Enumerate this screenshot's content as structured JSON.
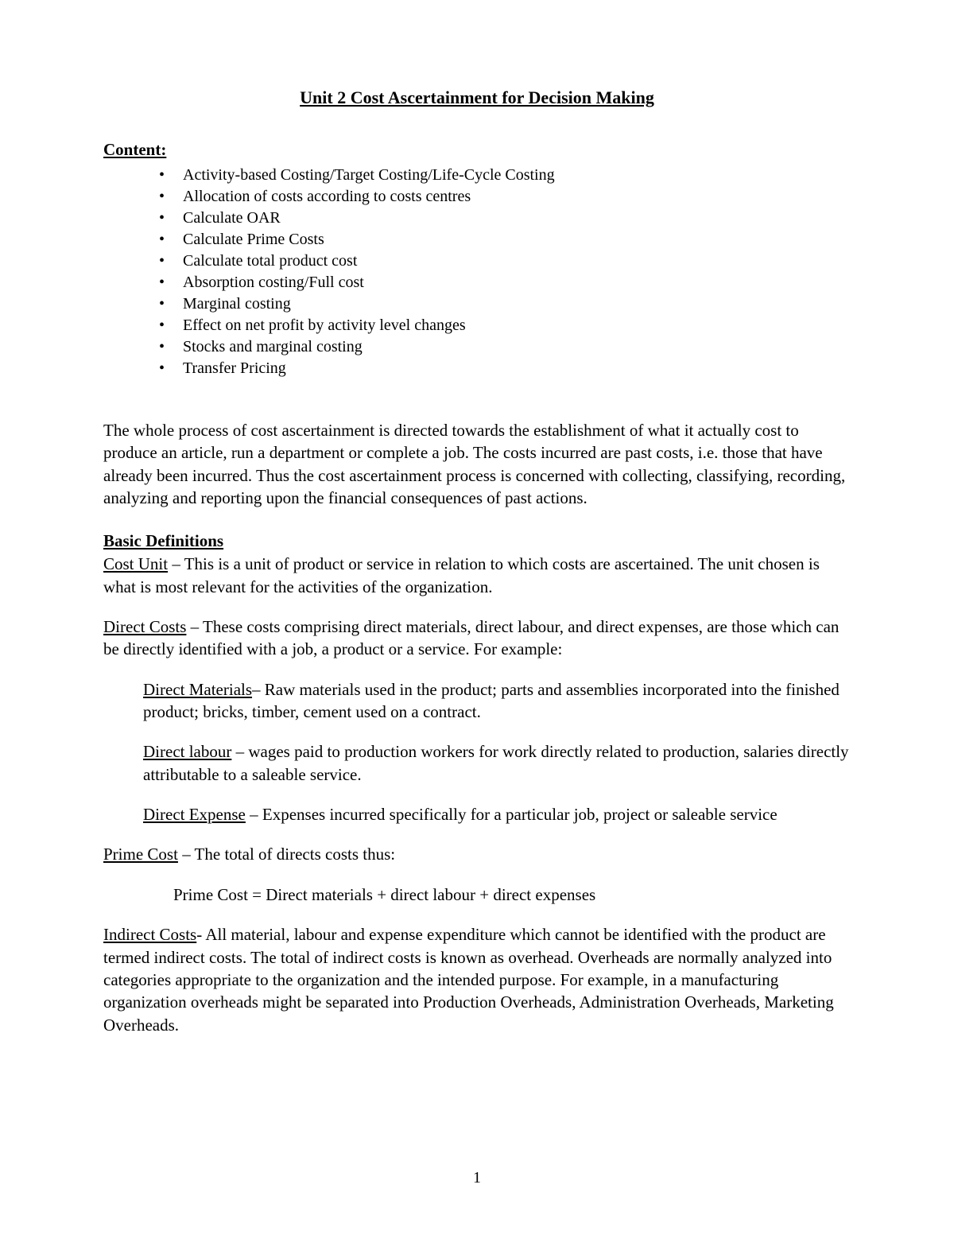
{
  "title": "Unit 2 Cost Ascertainment for Decision Making",
  "content_heading": "Content:",
  "bullets": {
    "b0": "Activity-based Costing/Target Costing/Life-Cycle Costing",
    "b1": "Allocation of costs according to costs centres",
    "b2": "Calculate OAR",
    "b3": "Calculate Prime Costs",
    "b4": "Calculate total product cost",
    "b5": "Absorption costing/Full cost",
    "b6": "Marginal costing",
    "b7": "Effect on net profit by activity level changes",
    "b8": "Stocks and marginal costing",
    "b9": "Transfer Pricing"
  },
  "intro_para": "The whole process of cost ascertainment is directed towards the establishment of what it actually cost to produce an article, run a department or complete a job. The costs incurred are past costs, i.e. those that have already been incurred. Thus the cost ascertainment process is concerned with collecting, classifying, recording, analyzing and reporting upon the financial consequences of past actions.",
  "basic_def_heading": "Basic Definitions",
  "cost_unit": {
    "term": "Cost Unit",
    "text": " – This is a unit of product or service in relation to which costs are ascertained. The unit chosen is what is most relevant for the activities of the organization."
  },
  "direct_costs": {
    "term": "Direct Costs",
    "text": " – These costs comprising direct materials, direct labour, and direct expenses, are those which can be directly identified with a job, a product or a service. For example:"
  },
  "direct_materials": {
    "term": "Direct Materials",
    "text": "– Raw materials used in the product; parts and assemblies incorporated into the finished product; bricks, timber, cement used on a contract."
  },
  "direct_labour": {
    "term": "Direct labour",
    "text": " – wages paid to production workers for work directly related to production, salaries directly attributable to a saleable service."
  },
  "direct_expense": {
    "term": "Direct Expense",
    "text": " – Expenses incurred specifically for a particular job, project or saleable service"
  },
  "prime_cost": {
    "term": "Prime Cost",
    "text": " – The total of directs costs thus:"
  },
  "prime_cost_formula": "Prime Cost = Direct materials + direct labour + direct expenses",
  "indirect_costs": {
    "term": "Indirect Costs",
    "text": "- All material, labour and expense expenditure which cannot be identified with the product are termed indirect costs. The total of indirect costs is known as overhead. Overheads are normally analyzed into categories appropriate to the organization and the intended purpose. For example, in a manufacturing organization overheads might be separated into Production Overheads, Administration Overheads, Marketing Overheads."
  },
  "page_number": "1"
}
